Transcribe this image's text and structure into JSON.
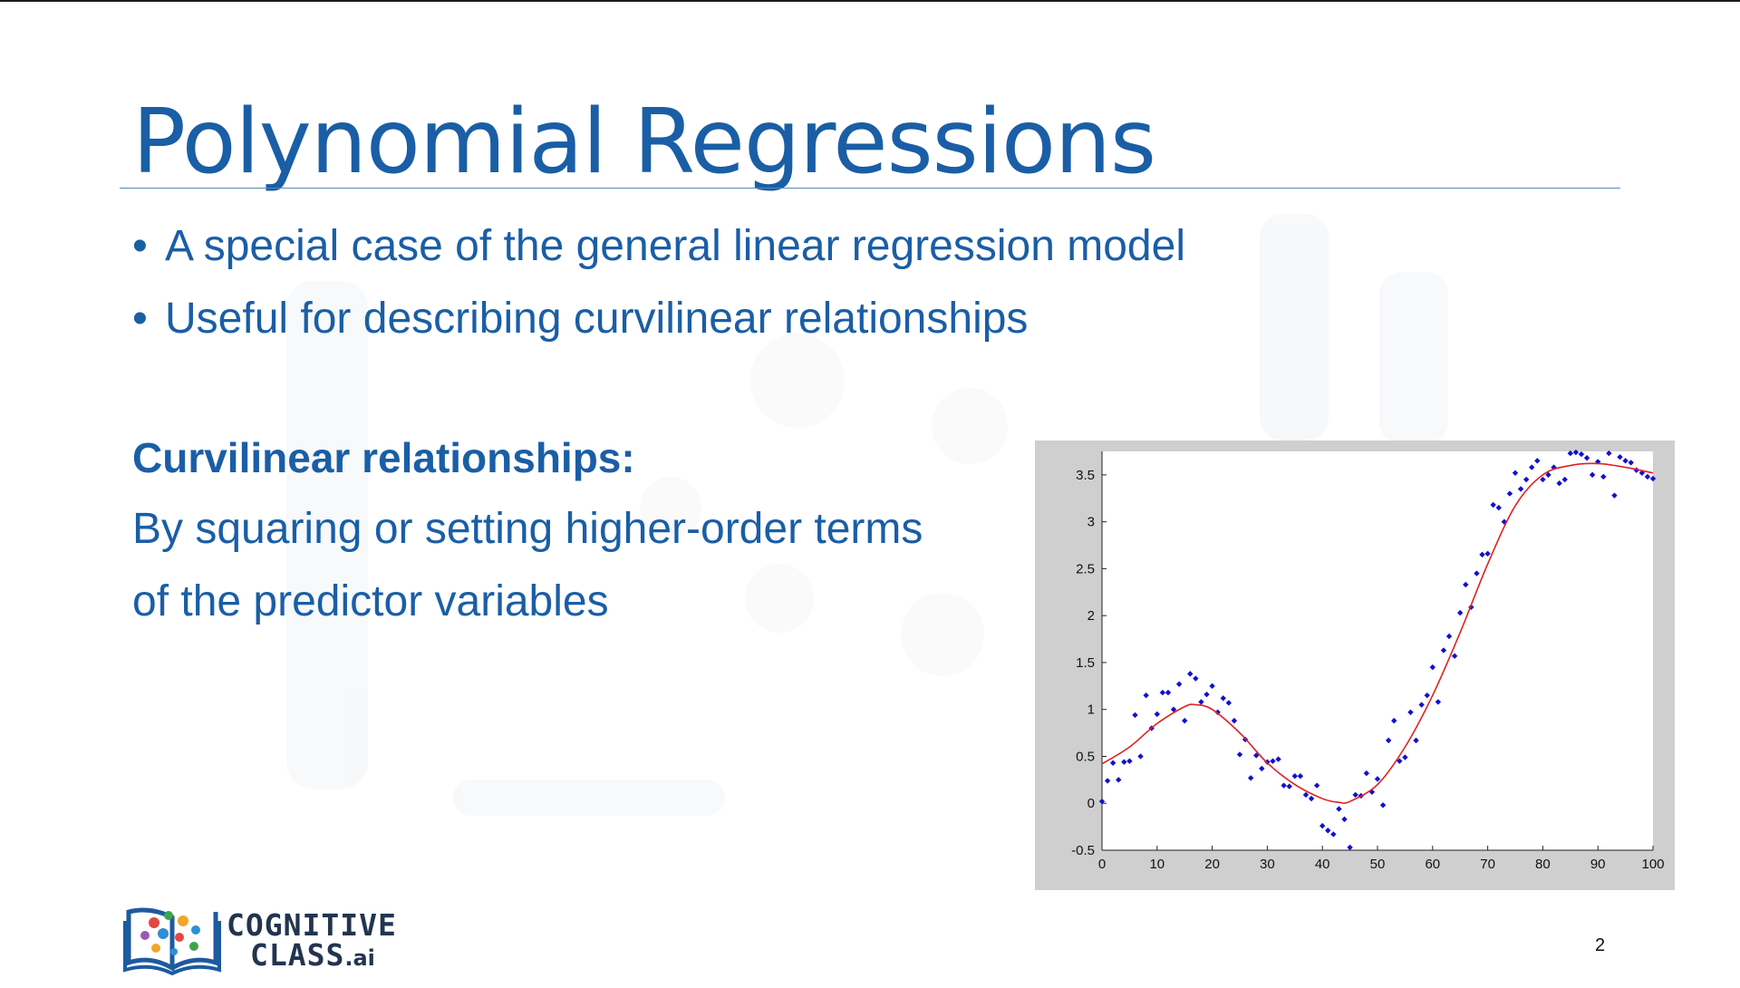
{
  "slide": {
    "title": "Polynomial Regressions",
    "bullets": [
      "A special case of the general linear regression model",
      "Useful for describing curvilinear relationships"
    ],
    "subheading": "Curvilinear relationships:",
    "body_lines": [
      "By squaring or setting higher-order terms",
      "of the predictor variables"
    ],
    "page_number": "2",
    "logo": {
      "line1": "COGNITIVE",
      "line2": "CLASS",
      "suffix": ".ai"
    },
    "bullet_glyph": "•"
  },
  "colors": {
    "text_blue": "#1a5ea6",
    "points": "#1010d0",
    "fit_line": "#e02020",
    "chart_frame": "#cfcfcf",
    "logo_dark": "#22344f"
  },
  "chart_data": {
    "type": "scatter",
    "title": "",
    "xlabel": "",
    "ylabel": "",
    "xlim": [
      0,
      100
    ],
    "ylim": [
      -0.5,
      3.75
    ],
    "xticks": [
      0,
      10,
      20,
      30,
      40,
      50,
      60,
      70,
      80,
      90,
      100
    ],
    "yticks": [
      -0.5,
      0,
      0.5,
      1,
      1.5,
      2,
      2.5,
      3,
      3.5
    ],
    "ytick_labels": [
      "-0.5",
      "0",
      "0.5",
      "1",
      "1.5",
      "2",
      "2.5",
      "3",
      "3.5"
    ],
    "grid": false,
    "series": [
      {
        "kind": "points",
        "color": "#1010d0",
        "x": [
          0,
          1,
          2,
          3,
          4,
          5,
          6,
          7,
          8,
          9,
          10,
          11,
          12,
          13,
          14,
          15,
          16,
          17,
          18,
          19,
          20,
          21,
          22,
          23,
          24,
          25,
          26,
          27,
          28,
          29,
          30,
          31,
          32,
          33,
          34,
          35,
          36,
          37,
          38,
          39,
          40,
          41,
          42,
          43,
          44,
          45,
          46,
          47,
          48,
          49,
          50,
          51,
          52,
          53,
          54,
          55,
          56,
          57,
          58,
          59,
          60,
          61,
          62,
          63,
          64,
          65,
          66,
          67,
          68,
          69,
          70,
          71,
          72,
          73,
          74,
          75,
          76,
          77,
          78,
          79,
          80,
          81,
          82,
          83,
          84,
          85,
          86,
          87,
          88,
          89,
          90,
          91,
          92,
          93,
          94,
          95,
          96,
          97,
          98,
          99,
          100
        ],
        "y": [
          0.02,
          0.24,
          0.43,
          0.25,
          0.44,
          0.45,
          0.94,
          0.5,
          1.15,
          0.8,
          0.95,
          1.18,
          1.18,
          1.0,
          1.27,
          0.88,
          1.38,
          1.33,
          1.08,
          1.16,
          1.25,
          0.97,
          1.12,
          1.07,
          0.88,
          0.52,
          0.68,
          0.27,
          0.51,
          0.37,
          0.44,
          0.45,
          0.47,
          0.19,
          0.18,
          0.29,
          0.29,
          0.09,
          0.05,
          0.19,
          -0.24,
          -0.29,
          -0.33,
          -0.06,
          -0.17,
          -0.47,
          0.09,
          0.08,
          0.32,
          0.12,
          0.26,
          -0.02,
          0.67,
          0.88,
          0.45,
          0.49,
          0.97,
          0.67,
          1.05,
          1.15,
          1.45,
          1.08,
          1.63,
          1.78,
          1.57,
          2.03,
          2.33,
          2.09,
          2.45,
          2.65,
          2.66,
          3.18,
          3.15,
          3.0,
          3.3,
          3.52,
          3.35,
          3.45,
          3.58,
          3.65,
          3.45,
          3.5,
          3.58,
          3.41,
          3.45,
          3.73,
          3.74,
          3.72,
          3.68,
          3.5,
          3.64,
          3.48,
          3.73,
          3.28,
          3.69,
          3.65,
          3.63,
          3.55,
          3.52,
          3.48,
          3.46
        ]
      },
      {
        "kind": "fit_line",
        "color": "#e02020",
        "x": [
          0,
          5,
          10,
          15,
          17,
          20,
          25,
          30,
          35,
          40,
          43,
          45,
          50,
          55,
          60,
          65,
          70,
          75,
          80,
          85,
          90,
          95,
          100
        ],
        "y": [
          0.42,
          0.6,
          0.85,
          1.03,
          1.05,
          1.0,
          0.75,
          0.43,
          0.2,
          0.05,
          0.01,
          0.02,
          0.2,
          0.6,
          1.15,
          1.82,
          2.55,
          3.17,
          3.5,
          3.6,
          3.62,
          3.58,
          3.52
        ]
      }
    ]
  }
}
